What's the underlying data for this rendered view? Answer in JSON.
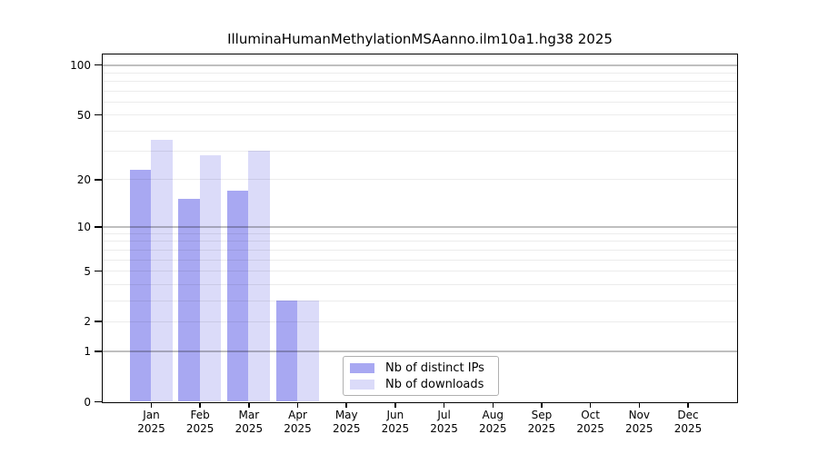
{
  "chart_data": {
    "type": "bar",
    "title": "IlluminaHumanMethylationMSAanno.ilm10a1.hg38 2025",
    "categories": [
      {
        "month": "Jan",
        "year": "2025"
      },
      {
        "month": "Feb",
        "year": "2025"
      },
      {
        "month": "Mar",
        "year": "2025"
      },
      {
        "month": "Apr",
        "year": "2025"
      },
      {
        "month": "May",
        "year": "2025"
      },
      {
        "month": "Jun",
        "year": "2025"
      },
      {
        "month": "Jul",
        "year": "2025"
      },
      {
        "month": "Aug",
        "year": "2025"
      },
      {
        "month": "Sep",
        "year": "2025"
      },
      {
        "month": "Oct",
        "year": "2025"
      },
      {
        "month": "Nov",
        "year": "2025"
      },
      {
        "month": "Dec",
        "year": "2025"
      }
    ],
    "series": [
      {
        "name": "Nb of distinct IPs",
        "color": "#a8a8f2",
        "values": [
          23,
          15,
          17,
          3,
          0,
          0,
          0,
          0,
          0,
          0,
          0,
          0
        ]
      },
      {
        "name": "Nb of downloads",
        "color": "#dbdbf9",
        "values": [
          35,
          28,
          30,
          3,
          0,
          0,
          0,
          0,
          0,
          0,
          0,
          0
        ]
      }
    ],
    "y_axis": {
      "scale": "log10(1+value)",
      "tick_values": [
        0,
        1,
        2,
        5,
        10,
        20,
        50,
        100
      ],
      "major_grid_values": [
        1,
        10,
        100
      ],
      "minor_grid_values": [
        2,
        3,
        4,
        5,
        6,
        7,
        8,
        9,
        20,
        30,
        40,
        50,
        60,
        70,
        80,
        90
      ],
      "ylim": [
        0,
        116
      ]
    },
    "grid": true,
    "legend_position": "lower center"
  }
}
